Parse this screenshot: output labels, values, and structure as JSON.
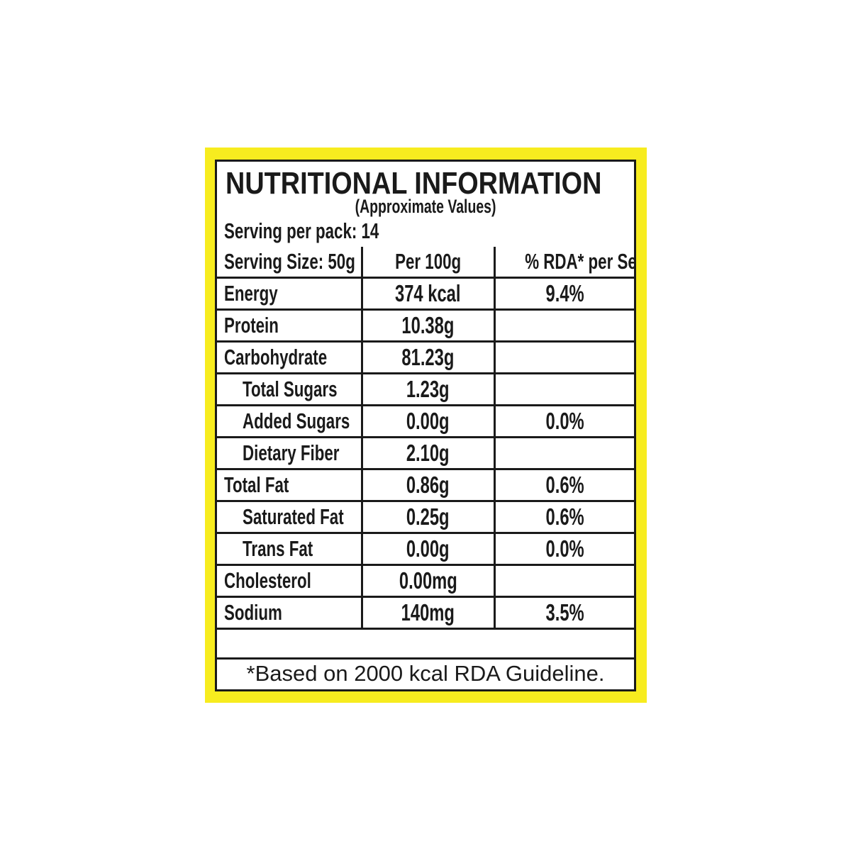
{
  "label": {
    "title": "NUTRITIONAL INFORMATION",
    "subtitle": "(Approximate Values)",
    "servings_per_pack": "Serving per pack: 14",
    "colors": {
      "border": "#f7ec1f",
      "text": "#1a1a1a"
    },
    "table": {
      "headers": [
        "Serving Size: 50g",
        "Per 100g",
        "% RDA* per Serving"
      ],
      "rows": [
        {
          "nutrient": "Energy",
          "per100g": "374 kcal",
          "rda": "9.4%"
        },
        {
          "nutrient": "Protein",
          "per100g": "10.38g",
          "rda": ""
        },
        {
          "nutrient": "Carbohydrate",
          "per100g": "81.23g",
          "rda": ""
        },
        {
          "nutrient": "Total Sugars",
          "per100g": "1.23g",
          "rda": ""
        },
        {
          "nutrient": "Added Sugars",
          "per100g": "0.00g",
          "rda": "0.0%"
        },
        {
          "nutrient": "Dietary Fiber",
          "per100g": "2.10g",
          "rda": ""
        },
        {
          "nutrient": "Total Fat",
          "per100g": "0.86g",
          "rda": "0.6%"
        },
        {
          "nutrient": "Saturated Fat",
          "per100g": "0.25g",
          "rda": "0.6%"
        },
        {
          "nutrient": "Trans Fat",
          "per100g": "0.00g",
          "rda": "0.0%"
        },
        {
          "nutrient": "Cholesterol",
          "per100g": "0.00mg",
          "rda": ""
        },
        {
          "nutrient": "Sodium",
          "per100g": "140mg",
          "rda": "3.5%"
        }
      ]
    },
    "footnote": "*Based on 2000 kcal RDA Guideline."
  }
}
